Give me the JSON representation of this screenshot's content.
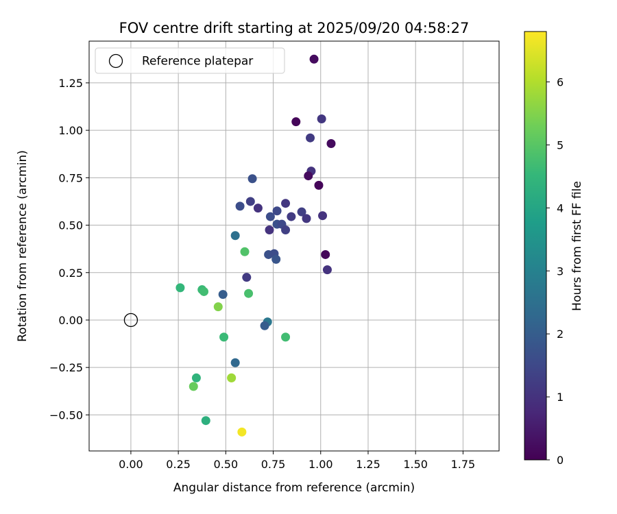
{
  "chart_data": {
    "type": "scatter",
    "title": "FOV centre drift starting at 2025/09/20 04:58:27",
    "xlabel": "Angular distance from reference (arcmin)",
    "ylabel": "Rotation from reference (arcmin)",
    "xlim": [
      -0.22,
      1.94
    ],
    "ylim": [
      -0.69,
      1.47
    ],
    "xticks": [
      0.0,
      0.25,
      0.5,
      0.75,
      1.0,
      1.25,
      1.5,
      1.75
    ],
    "xtick_labels": [
      "0.00",
      "0.25",
      "0.50",
      "0.75",
      "1.00",
      "1.25",
      "1.50",
      "1.75"
    ],
    "yticks": [
      -0.5,
      -0.25,
      0.0,
      0.25,
      0.5,
      0.75,
      1.0,
      1.25
    ],
    "ytick_labels": [
      "−0.50",
      "−0.25",
      "0.00",
      "0.25",
      "0.50",
      "0.75",
      "1.00",
      "1.25"
    ],
    "grid": true,
    "legend": {
      "position": "top-left",
      "entries": [
        "Reference platepar"
      ]
    },
    "reference_point": {
      "x": 0.0,
      "y": 0.0,
      "label": "Reference platepar"
    },
    "colorbar": {
      "label": "Hours from first FF file",
      "range": [
        0,
        6.8
      ],
      "ticks": [
        0,
        1,
        2,
        3,
        4,
        5,
        6
      ],
      "tick_labels": [
        "0",
        "1",
        "2",
        "3",
        "4",
        "5",
        "6"
      ],
      "colormap": "viridis"
    },
    "colormap_stops": [
      "#440154",
      "#482878",
      "#3e4989",
      "#31688e",
      "#26828e",
      "#1f9e89",
      "#35b779",
      "#6ece58",
      "#b5de2b",
      "#fde725"
    ],
    "points": [
      {
        "x": 0.965,
        "y": 1.375,
        "h": 0.2
      },
      {
        "x": 0.87,
        "y": 1.045,
        "h": 0.1
      },
      {
        "x": 1.005,
        "y": 1.06,
        "h": 1.1
      },
      {
        "x": 0.945,
        "y": 0.96,
        "h": 1.2
      },
      {
        "x": 1.055,
        "y": 0.93,
        "h": 0.2
      },
      {
        "x": 0.95,
        "y": 0.785,
        "h": 1.0
      },
      {
        "x": 0.935,
        "y": 0.76,
        "h": 0.2
      },
      {
        "x": 0.99,
        "y": 0.71,
        "h": 0.1
      },
      {
        "x": 0.64,
        "y": 0.745,
        "h": 1.7
      },
      {
        "x": 0.63,
        "y": 0.625,
        "h": 1.3
      },
      {
        "x": 0.575,
        "y": 0.6,
        "h": 1.6
      },
      {
        "x": 0.67,
        "y": 0.59,
        "h": 1.0
      },
      {
        "x": 0.815,
        "y": 0.615,
        "h": 1.1
      },
      {
        "x": 0.77,
        "y": 0.575,
        "h": 1.5
      },
      {
        "x": 0.9,
        "y": 0.57,
        "h": 1.3
      },
      {
        "x": 0.735,
        "y": 0.545,
        "h": 1.6
      },
      {
        "x": 0.845,
        "y": 0.545,
        "h": 1.2
      },
      {
        "x": 0.925,
        "y": 0.535,
        "h": 1.1
      },
      {
        "x": 1.01,
        "y": 0.55,
        "h": 1.0
      },
      {
        "x": 0.77,
        "y": 0.505,
        "h": 1.7
      },
      {
        "x": 0.795,
        "y": 0.505,
        "h": 1.5
      },
      {
        "x": 0.73,
        "y": 0.475,
        "h": 1.0
      },
      {
        "x": 0.815,
        "y": 0.475,
        "h": 1.3
      },
      {
        "x": 0.55,
        "y": 0.445,
        "h": 2.5
      },
      {
        "x": 0.725,
        "y": 0.345,
        "h": 1.7
      },
      {
        "x": 0.755,
        "y": 0.35,
        "h": 1.6
      },
      {
        "x": 0.765,
        "y": 0.32,
        "h": 1.8
      },
      {
        "x": 1.025,
        "y": 0.345,
        "h": 0.1
      },
      {
        "x": 1.035,
        "y": 0.265,
        "h": 1.0
      },
      {
        "x": 0.6,
        "y": 0.36,
        "h": 4.9
      },
      {
        "x": 0.61,
        "y": 0.225,
        "h": 1.2
      },
      {
        "x": 0.26,
        "y": 0.17,
        "h": 4.5
      },
      {
        "x": 0.375,
        "y": 0.16,
        "h": 4.6
      },
      {
        "x": 0.385,
        "y": 0.15,
        "h": 4.7
      },
      {
        "x": 0.485,
        "y": 0.135,
        "h": 2.0
      },
      {
        "x": 0.62,
        "y": 0.14,
        "h": 4.8
      },
      {
        "x": 0.46,
        "y": 0.07,
        "h": 5.5
      },
      {
        "x": 0.72,
        "y": -0.01,
        "h": 2.7
      },
      {
        "x": 0.705,
        "y": -0.03,
        "h": 2.0
      },
      {
        "x": 0.49,
        "y": -0.09,
        "h": 4.6
      },
      {
        "x": 0.815,
        "y": -0.09,
        "h": 4.7
      },
      {
        "x": 0.55,
        "y": -0.225,
        "h": 2.3
      },
      {
        "x": 0.345,
        "y": -0.305,
        "h": 4.4
      },
      {
        "x": 0.53,
        "y": -0.305,
        "h": 6.7
      },
      {
        "x": 0.53,
        "y": -0.305,
        "h": 5.8
      },
      {
        "x": 0.33,
        "y": -0.35,
        "h": 5.2
      },
      {
        "x": 0.395,
        "y": -0.53,
        "h": 4.3
      },
      {
        "x": 0.585,
        "y": -0.59,
        "h": 6.7
      }
    ]
  }
}
